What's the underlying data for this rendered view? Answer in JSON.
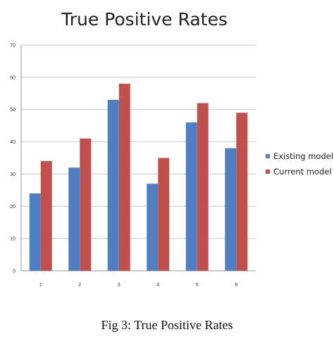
{
  "caption": "Fig 3: True Positive Rates",
  "chart_data": {
    "type": "bar",
    "title": "True Positive Rates",
    "xlabel": "",
    "ylabel": "",
    "categories": [
      "1",
      "2",
      "3",
      "4",
      "5",
      "6"
    ],
    "series": [
      {
        "name": "Existing model",
        "values": [
          24,
          32,
          53,
          27,
          46,
          38
        ],
        "color": "#4f7fc0"
      },
      {
        "name": "Current model",
        "values": [
          34,
          41,
          58,
          35,
          52,
          49
        ],
        "color": "#c0504d"
      }
    ],
    "ylim": [
      0,
      70
    ],
    "yticks": [
      0,
      10,
      20,
      30,
      40,
      50,
      60,
      70
    ],
    "grid": true,
    "legend_position": "right"
  }
}
